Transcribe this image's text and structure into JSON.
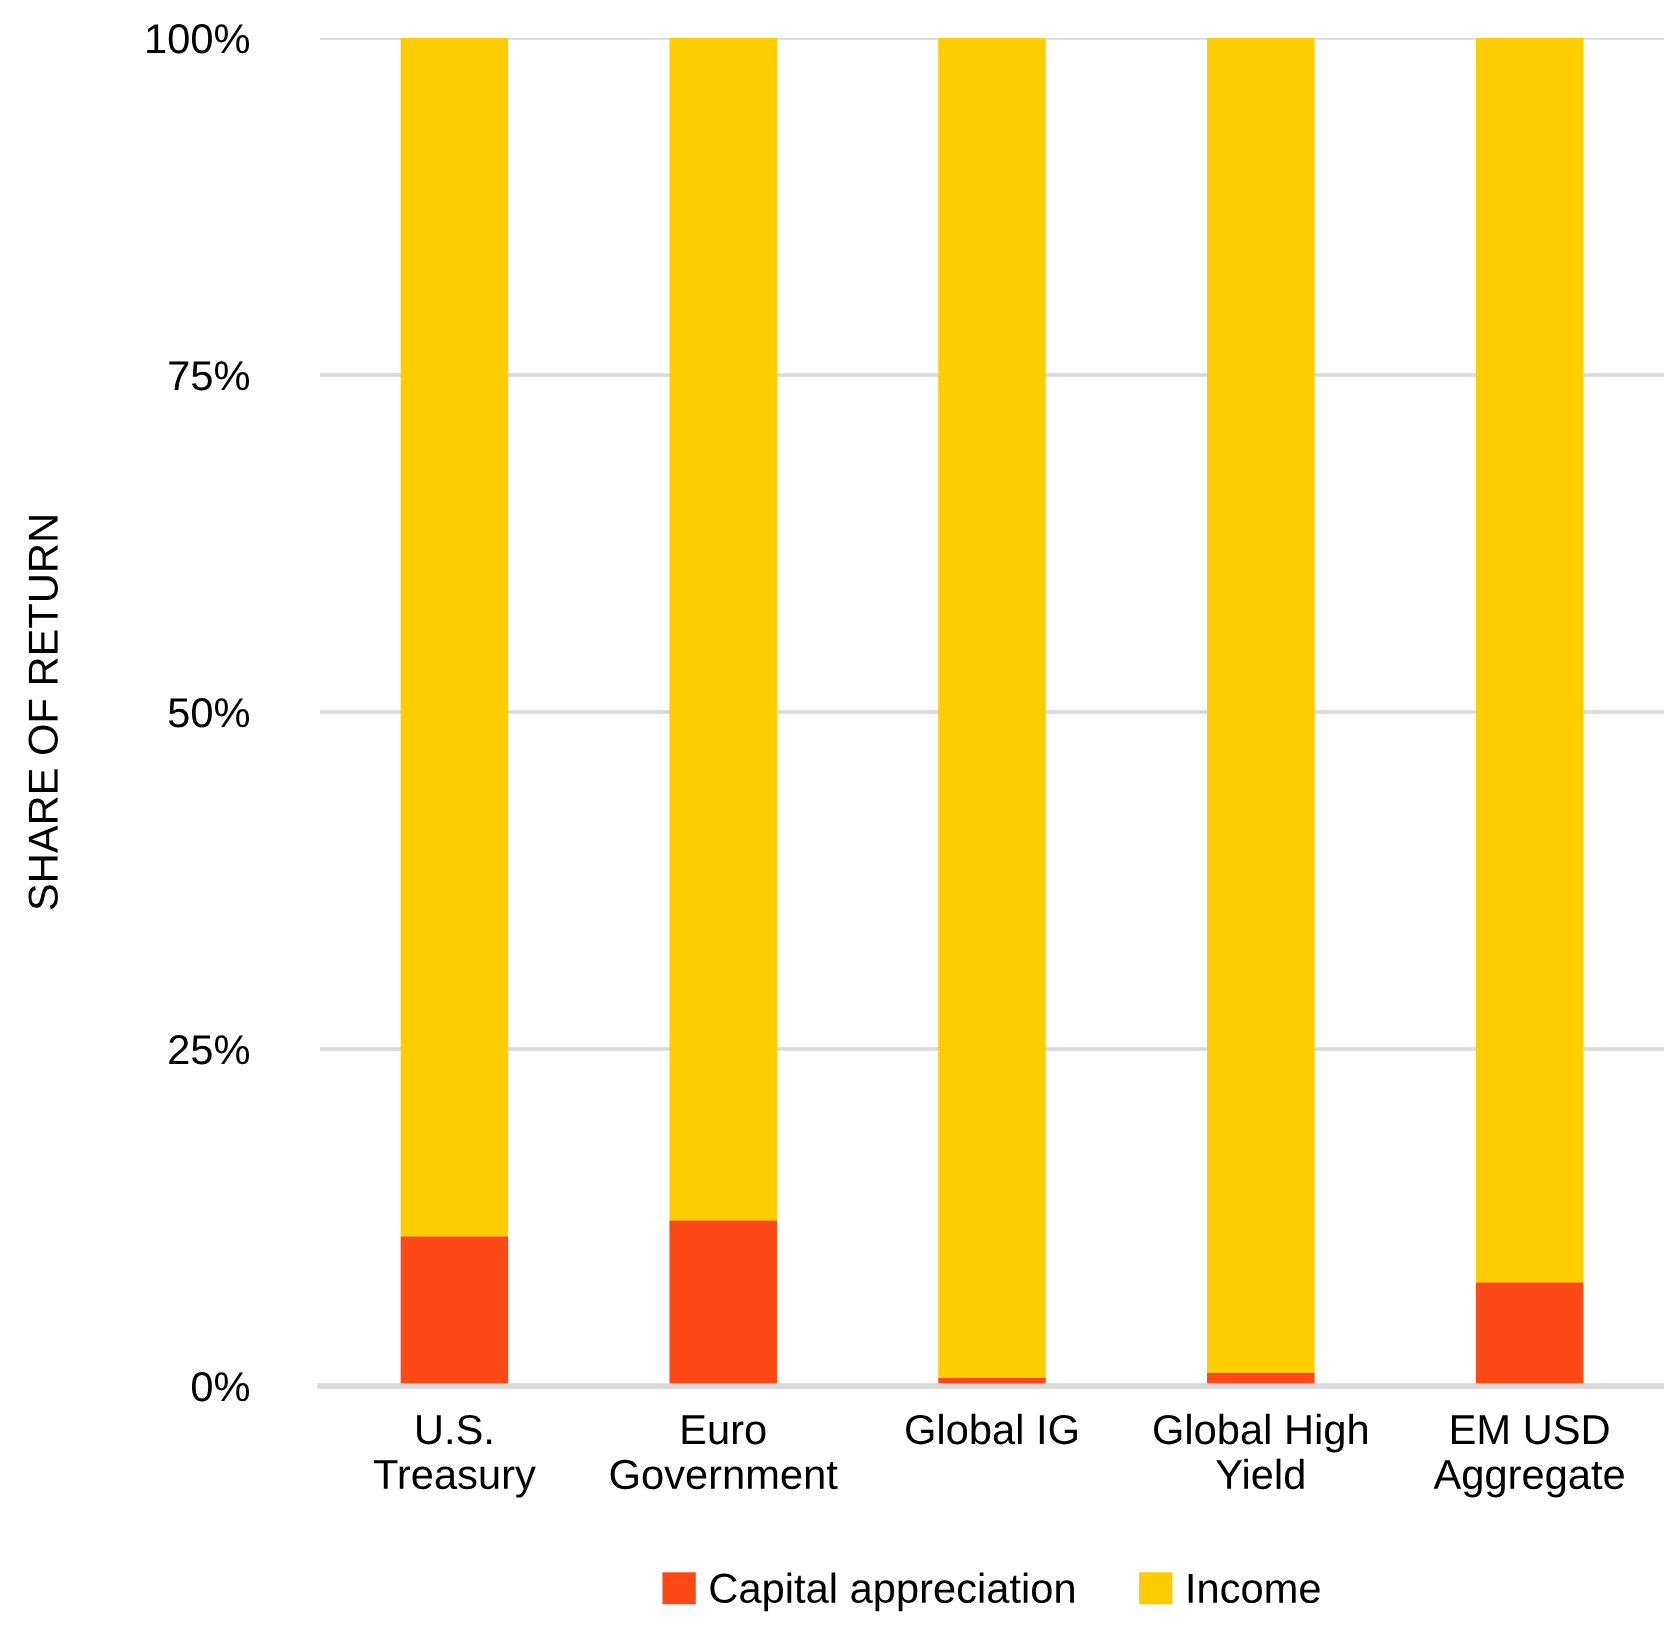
{
  "chart_data": {
    "type": "bar",
    "stacked": true,
    "ylabel": "SHARE OF RETURN",
    "categories": [
      "U.S.\nTreasury",
      "Euro\nGovernment",
      "Global IG",
      "Global High\nYield",
      "EM USD\nAggregate"
    ],
    "series": [
      {
        "name": "Capital appreciation",
        "color": "#fc4915",
        "values": [
          11.1,
          12.3,
          0.6,
          1.0,
          7.7
        ]
      },
      {
        "name": "Income",
        "color": "#fecd00",
        "values": [
          88.9,
          87.7,
          99.4,
          99.0,
          92.3
        ]
      }
    ],
    "ylim": [
      0,
      100
    ],
    "yticks": [
      {
        "value": 0,
        "label": "0%"
      },
      {
        "value": 25,
        "label": "25%"
      },
      {
        "value": 50,
        "label": "50%"
      },
      {
        "value": 75,
        "label": "75%"
      },
      {
        "value": 100,
        "label": "100%"
      }
    ],
    "grid": "y",
    "legend": "bottom"
  }
}
